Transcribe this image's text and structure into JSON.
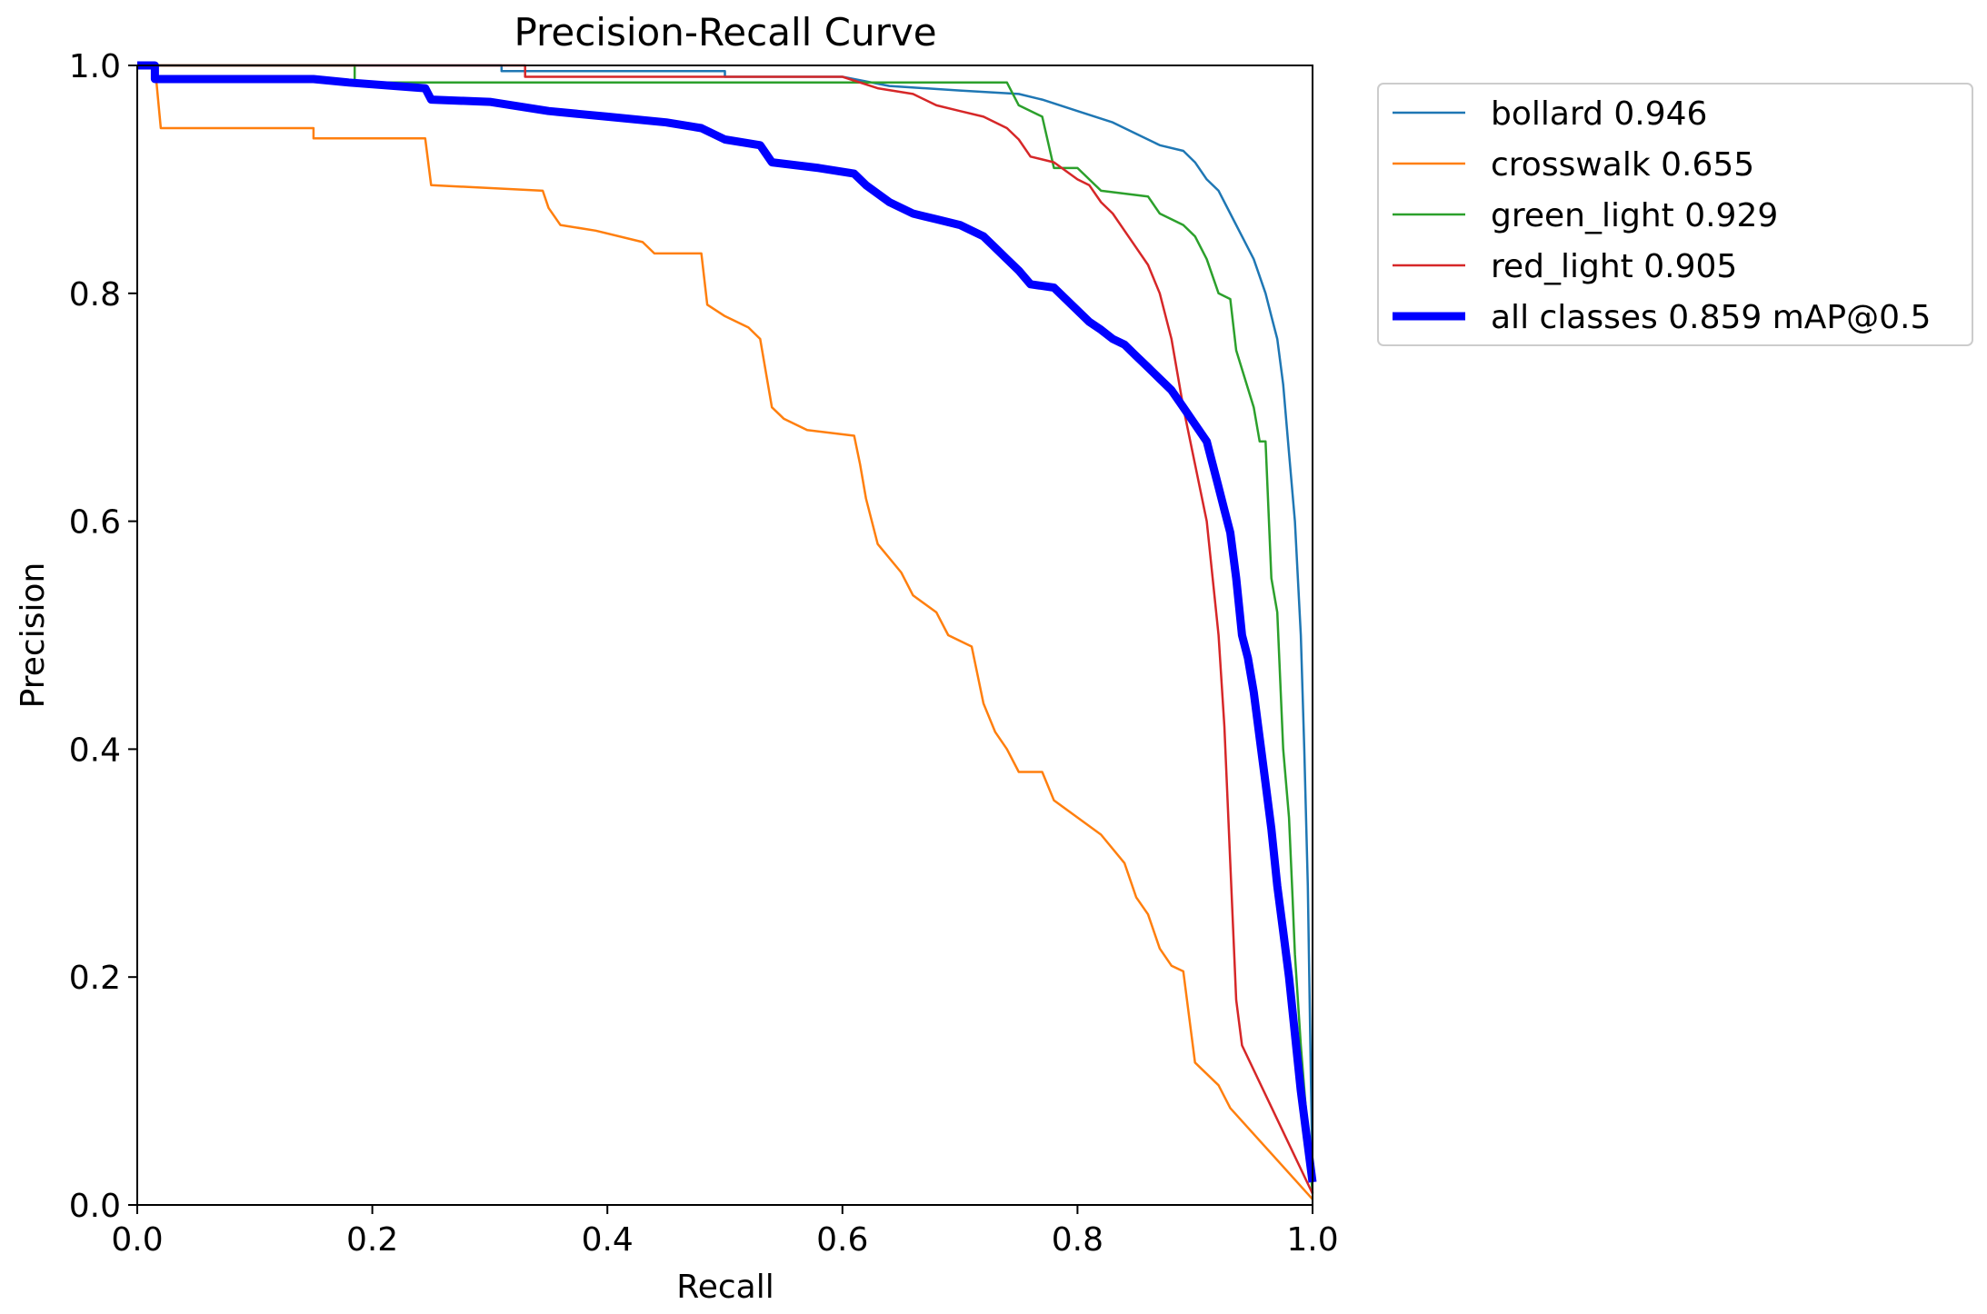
{
  "chart_data": {
    "type": "line",
    "title": "Precision-Recall Curve",
    "xlabel": "Recall",
    "ylabel": "Precision",
    "xlim": [
      0,
      1
    ],
    "ylim": [
      0,
      1
    ],
    "xticks": [
      "0.0",
      "0.2",
      "0.4",
      "0.6",
      "0.8",
      "1.0"
    ],
    "yticks": [
      "0.0",
      "0.2",
      "0.4",
      "0.6",
      "0.8",
      "1.0"
    ],
    "grid": false,
    "legend_position": "outside-top-right",
    "series": [
      {
        "name": "bollard",
        "label": "bollard 0.946",
        "ap": 0.946,
        "color": "#1f77b4",
        "width": "thin",
        "points": [
          [
            0,
            1
          ],
          [
            0.31,
            1
          ],
          [
            0.31,
            0.995
          ],
          [
            0.5,
            0.995
          ],
          [
            0.5,
            0.99
          ],
          [
            0.6,
            0.99
          ],
          [
            0.64,
            0.982
          ],
          [
            0.7,
            0.978
          ],
          [
            0.75,
            0.975
          ],
          [
            0.77,
            0.97
          ],
          [
            0.8,
            0.96
          ],
          [
            0.83,
            0.95
          ],
          [
            0.85,
            0.94
          ],
          [
            0.87,
            0.93
          ],
          [
            0.89,
            0.925
          ],
          [
            0.9,
            0.915
          ],
          [
            0.91,
            0.9
          ],
          [
            0.92,
            0.89
          ],
          [
            0.93,
            0.87
          ],
          [
            0.94,
            0.85
          ],
          [
            0.95,
            0.83
          ],
          [
            0.96,
            0.8
          ],
          [
            0.965,
            0.78
          ],
          [
            0.97,
            0.76
          ],
          [
            0.975,
            0.72
          ],
          [
            0.98,
            0.66
          ],
          [
            0.985,
            0.6
          ],
          [
            0.99,
            0.5
          ],
          [
            0.993,
            0.4
          ],
          [
            0.996,
            0.28
          ],
          [
            0.998,
            0.15
          ],
          [
            1,
            0.02
          ]
        ]
      },
      {
        "name": "crosswalk",
        "label": "crosswalk 0.655",
        "ap": 0.655,
        "color": "#ff7f0e",
        "width": "thin",
        "points": [
          [
            0,
            1
          ],
          [
            0.015,
            1
          ],
          [
            0.02,
            0.945
          ],
          [
            0.15,
            0.945
          ],
          [
            0.15,
            0.936
          ],
          [
            0.245,
            0.936
          ],
          [
            0.25,
            0.895
          ],
          [
            0.345,
            0.89
          ],
          [
            0.35,
            0.875
          ],
          [
            0.36,
            0.86
          ],
          [
            0.39,
            0.855
          ],
          [
            0.43,
            0.845
          ],
          [
            0.44,
            0.835
          ],
          [
            0.48,
            0.835
          ],
          [
            0.485,
            0.79
          ],
          [
            0.5,
            0.78
          ],
          [
            0.52,
            0.77
          ],
          [
            0.53,
            0.76
          ],
          [
            0.54,
            0.7
          ],
          [
            0.55,
            0.69
          ],
          [
            0.57,
            0.68
          ],
          [
            0.61,
            0.675
          ],
          [
            0.615,
            0.65
          ],
          [
            0.62,
            0.62
          ],
          [
            0.63,
            0.58
          ],
          [
            0.65,
            0.555
          ],
          [
            0.66,
            0.535
          ],
          [
            0.68,
            0.52
          ],
          [
            0.69,
            0.5
          ],
          [
            0.71,
            0.49
          ],
          [
            0.72,
            0.44
          ],
          [
            0.73,
            0.415
          ],
          [
            0.74,
            0.4
          ],
          [
            0.75,
            0.38
          ],
          [
            0.77,
            0.38
          ],
          [
            0.78,
            0.355
          ],
          [
            0.8,
            0.34
          ],
          [
            0.82,
            0.325
          ],
          [
            0.84,
            0.3
          ],
          [
            0.85,
            0.27
          ],
          [
            0.86,
            0.255
          ],
          [
            0.87,
            0.225
          ],
          [
            0.88,
            0.21
          ],
          [
            0.89,
            0.205
          ],
          [
            0.9,
            0.125
          ],
          [
            0.92,
            0.105
          ],
          [
            0.93,
            0.085
          ],
          [
            1,
            0.005
          ]
        ]
      },
      {
        "name": "green_light",
        "label": "green_light 0.929",
        "ap": 0.929,
        "color": "#2ca02c",
        "width": "thin",
        "points": [
          [
            0,
            1
          ],
          [
            0.185,
            1
          ],
          [
            0.185,
            0.985
          ],
          [
            0.74,
            0.985
          ],
          [
            0.75,
            0.965
          ],
          [
            0.77,
            0.955
          ],
          [
            0.78,
            0.91
          ],
          [
            0.8,
            0.91
          ],
          [
            0.82,
            0.89
          ],
          [
            0.86,
            0.885
          ],
          [
            0.87,
            0.87
          ],
          [
            0.89,
            0.86
          ],
          [
            0.9,
            0.85
          ],
          [
            0.91,
            0.83
          ],
          [
            0.92,
            0.8
          ],
          [
            0.93,
            0.795
          ],
          [
            0.935,
            0.75
          ],
          [
            0.95,
            0.7
          ],
          [
            0.955,
            0.67
          ],
          [
            0.96,
            0.67
          ],
          [
            0.965,
            0.55
          ],
          [
            0.97,
            0.52
          ],
          [
            0.975,
            0.4
          ],
          [
            0.98,
            0.34
          ],
          [
            0.983,
            0.27
          ],
          [
            0.985,
            0.22
          ],
          [
            0.99,
            0.14
          ],
          [
            1,
            0.01
          ]
        ]
      },
      {
        "name": "red_light",
        "label": "red_light 0.905",
        "ap": 0.905,
        "color": "#d62728",
        "width": "thin",
        "points": [
          [
            0,
            1
          ],
          [
            0.33,
            1
          ],
          [
            0.33,
            0.99
          ],
          [
            0.6,
            0.99
          ],
          [
            0.63,
            0.98
          ],
          [
            0.66,
            0.975
          ],
          [
            0.68,
            0.965
          ],
          [
            0.7,
            0.96
          ],
          [
            0.72,
            0.955
          ],
          [
            0.74,
            0.945
          ],
          [
            0.75,
            0.935
          ],
          [
            0.76,
            0.92
          ],
          [
            0.78,
            0.915
          ],
          [
            0.8,
            0.9
          ],
          [
            0.81,
            0.895
          ],
          [
            0.82,
            0.88
          ],
          [
            0.83,
            0.87
          ],
          [
            0.84,
            0.855
          ],
          [
            0.85,
            0.84
          ],
          [
            0.86,
            0.825
          ],
          [
            0.87,
            0.8
          ],
          [
            0.88,
            0.76
          ],
          [
            0.885,
            0.73
          ],
          [
            0.89,
            0.7
          ],
          [
            0.9,
            0.65
          ],
          [
            0.91,
            0.6
          ],
          [
            0.915,
            0.55
          ],
          [
            0.92,
            0.5
          ],
          [
            0.925,
            0.42
          ],
          [
            0.93,
            0.3
          ],
          [
            0.935,
            0.18
          ],
          [
            0.94,
            0.14
          ],
          [
            1,
            0.01
          ]
        ]
      },
      {
        "name": "all classes",
        "label": "all classes 0.859 mAP@0.5",
        "ap": 0.859,
        "color": "#0000ff",
        "width": "thick",
        "points": [
          [
            0,
            1
          ],
          [
            0.015,
            1
          ],
          [
            0.015,
            0.988
          ],
          [
            0.15,
            0.988
          ],
          [
            0.18,
            0.985
          ],
          [
            0.245,
            0.98
          ],
          [
            0.25,
            0.97
          ],
          [
            0.3,
            0.968
          ],
          [
            0.35,
            0.96
          ],
          [
            0.4,
            0.955
          ],
          [
            0.45,
            0.95
          ],
          [
            0.48,
            0.945
          ],
          [
            0.5,
            0.935
          ],
          [
            0.53,
            0.93
          ],
          [
            0.54,
            0.915
          ],
          [
            0.58,
            0.91
          ],
          [
            0.61,
            0.905
          ],
          [
            0.62,
            0.895
          ],
          [
            0.64,
            0.88
          ],
          [
            0.66,
            0.87
          ],
          [
            0.68,
            0.865
          ],
          [
            0.7,
            0.86
          ],
          [
            0.72,
            0.85
          ],
          [
            0.73,
            0.84
          ],
          [
            0.74,
            0.83
          ],
          [
            0.75,
            0.82
          ],
          [
            0.76,
            0.808
          ],
          [
            0.78,
            0.805
          ],
          [
            0.79,
            0.795
          ],
          [
            0.8,
            0.785
          ],
          [
            0.81,
            0.775
          ],
          [
            0.82,
            0.768
          ],
          [
            0.83,
            0.76
          ],
          [
            0.84,
            0.755
          ],
          [
            0.85,
            0.745
          ],
          [
            0.86,
            0.735
          ],
          [
            0.87,
            0.725
          ],
          [
            0.88,
            0.715
          ],
          [
            0.89,
            0.7
          ],
          [
            0.9,
            0.685
          ],
          [
            0.91,
            0.67
          ],
          [
            0.915,
            0.65
          ],
          [
            0.92,
            0.63
          ],
          [
            0.925,
            0.61
          ],
          [
            0.93,
            0.59
          ],
          [
            0.935,
            0.55
          ],
          [
            0.94,
            0.5
          ],
          [
            0.945,
            0.48
          ],
          [
            0.95,
            0.45
          ],
          [
            0.955,
            0.41
          ],
          [
            0.96,
            0.37
          ],
          [
            0.965,
            0.33
          ],
          [
            0.97,
            0.28
          ],
          [
            0.975,
            0.24
          ],
          [
            0.98,
            0.2
          ],
          [
            0.985,
            0.15
          ],
          [
            0.99,
            0.1
          ],
          [
            1,
            0.02
          ]
        ]
      }
    ]
  }
}
